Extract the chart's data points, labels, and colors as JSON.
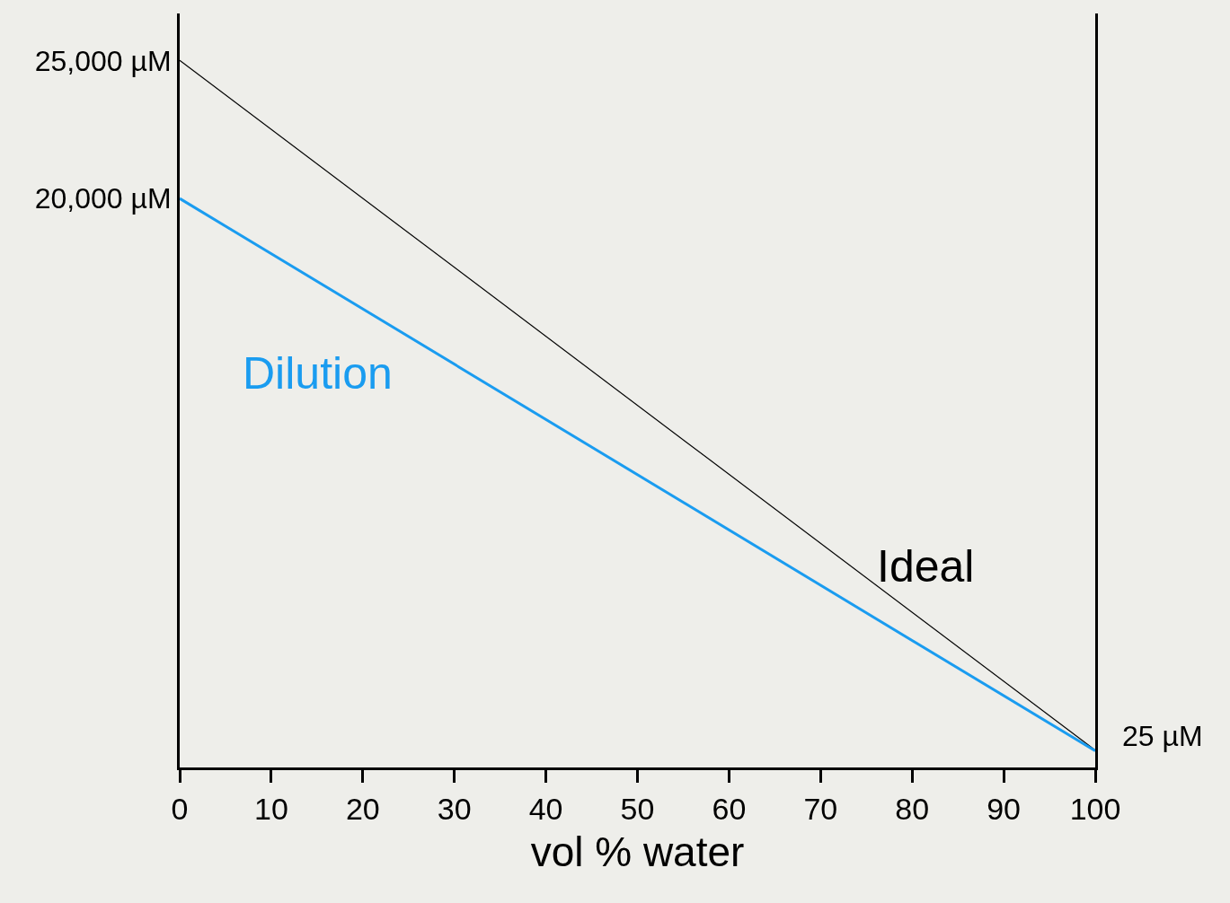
{
  "chart_data": {
    "type": "line",
    "xlabel": "vol % water",
    "x": [
      0,
      100
    ],
    "series": [
      {
        "name": "Ideal",
        "color": "#000000",
        "values": [
          25000,
          25
        ]
      },
      {
        "name": "Dilution",
        "color": "#1a9cf0",
        "values": [
          20000,
          0
        ]
      }
    ],
    "xlim": [
      0,
      100
    ],
    "xticks": [
      0,
      10,
      20,
      30,
      40,
      50,
      60,
      70,
      80,
      90,
      100
    ],
    "ylim": [
      -600,
      26700
    ],
    "yticks": [
      {
        "value": 25000,
        "label": "25,000 µM"
      },
      {
        "value": 20000,
        "label": "20,000 µM"
      }
    ],
    "annotations": [
      {
        "text": "25 µM",
        "x": 100,
        "y": 25
      }
    ],
    "grid": false,
    "legend": false,
    "marker": "none",
    "line_style": "solid"
  }
}
